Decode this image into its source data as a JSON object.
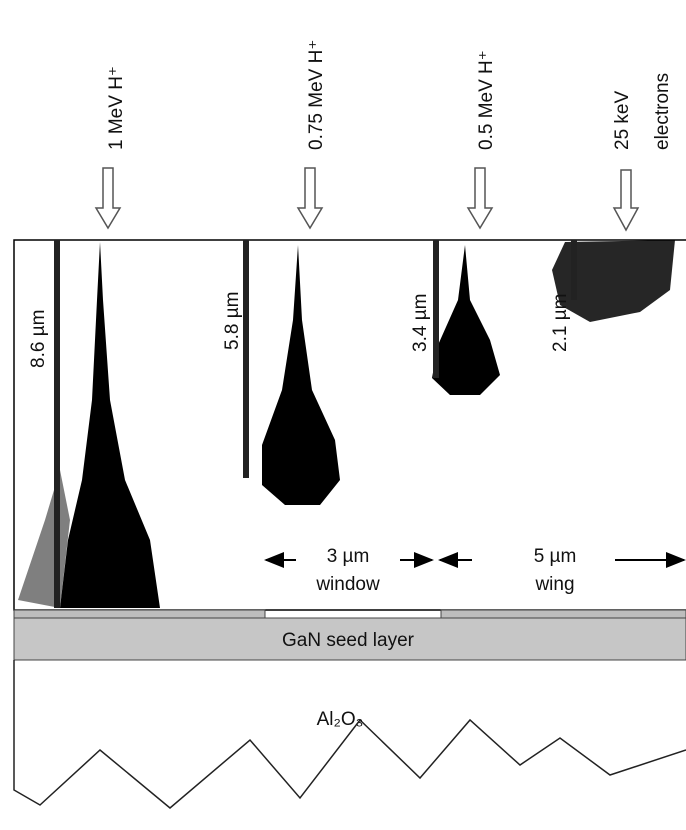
{
  "beams": [
    {
      "label": "1 MeV H⁺",
      "depth": "8.6 µm"
    },
    {
      "label": "0.75 MeV H⁺",
      "depth": "5.8 µm"
    },
    {
      "label": "0.5 MeV H⁺",
      "depth": "3.4 µm"
    },
    {
      "label": "25 keV",
      "sublabel": "electrons",
      "depth": "2.1 µm"
    }
  ],
  "regions": {
    "window": {
      "width": "3 µm",
      "label": "window"
    },
    "wing": {
      "width": "5 µm",
      "label": "wing"
    }
  },
  "layers": {
    "seed": "GaN seed layer",
    "substrate": "Al₂O₃"
  }
}
